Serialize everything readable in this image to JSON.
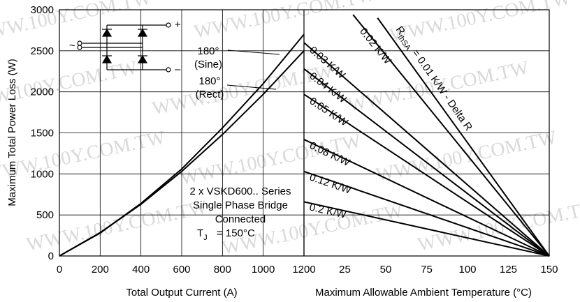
{
  "chart_data": [
    {
      "type": "line",
      "xlabel": "Total Output Current (A)",
      "ylabel": "Maximum Total Power Loss (W)",
      "xlim": [
        0,
        1200
      ],
      "ylim": [
        0,
        3000
      ],
      "x_ticks": [
        "0",
        "200",
        "400",
        "600",
        "800",
        "1000",
        "1200"
      ],
      "y_ticks": [
        "0",
        "500",
        "1000",
        "1500",
        "2000",
        "2500",
        "3000"
      ],
      "grid": true,
      "series": [
        {
          "name": "180° (Sine)",
          "x": [
            0,
            200,
            400,
            600,
            800,
            1000,
            1200
          ],
          "y": [
            0,
            280,
            640,
            1060,
            1560,
            2100,
            2700
          ]
        },
        {
          "name": "180° (Rect)",
          "x": [
            0,
            200,
            400,
            600,
            800,
            1000,
            1200
          ],
          "y": [
            0,
            285,
            630,
            1030,
            1480,
            1970,
            2500
          ]
        }
      ],
      "annotations": [
        {
          "id": "sine_label",
          "lines": [
            "180°",
            "(Sine)"
          ]
        },
        {
          "id": "rect_label",
          "lines": [
            "180°",
            "(Rect)"
          ]
        },
        {
          "id": "device_info",
          "lines": [
            "2 x VSKD600.. Series",
            "Single Phase Bridge",
            "Connected",
            "= 150°C"
          ]
        },
        {
          "id": "tj_symbol",
          "main": "T",
          "sub": "J"
        }
      ],
      "circuit": {
        "ac_symbol": "~",
        "plus": "+",
        "minus": "–"
      }
    },
    {
      "type": "line",
      "xlabel": "Maximum Allowable Ambient Temperature (°C)",
      "xlim": [
        0,
        150
      ],
      "ylim": [
        0,
        3000
      ],
      "x_ticks": [
        "25",
        "50",
        "75",
        "100",
        "125",
        "150"
      ],
      "grid": true,
      "series": [
        {
          "name": "0.01 K/W - Delta R",
          "x": [
            45,
            150
          ],
          "y": [
            2900,
            0
          ]
        },
        {
          "name": "0.02 K/W",
          "x": [
            30,
            150
          ],
          "y": [
            2940,
            0
          ]
        },
        {
          "name": "0.03 K/W",
          "x": [
            0,
            150
          ],
          "y": [
            2600,
            0
          ]
        },
        {
          "name": "0.04 K/W",
          "x": [
            0,
            150
          ],
          "y": [
            2280,
            0
          ]
        },
        {
          "name": "0.05 K/W",
          "x": [
            0,
            150
          ],
          "y": [
            1970,
            0
          ]
        },
        {
          "name": "0.08 K/W",
          "x": [
            0,
            150
          ],
          "y": [
            1420,
            0
          ]
        },
        {
          "name": "0.12 K/W",
          "x": [
            0,
            150
          ],
          "y": [
            1030,
            0
          ]
        },
        {
          "name": "0.2 K/W",
          "x": [
            0,
            150
          ],
          "y": [
            660,
            0
          ]
        }
      ],
      "rthsa_label": {
        "main": "R",
        "sub": "thSA",
        "tail": "= 0.01 K/W - Delta R"
      }
    }
  ],
  "watermark": "WWW.100Y.COM.TW"
}
